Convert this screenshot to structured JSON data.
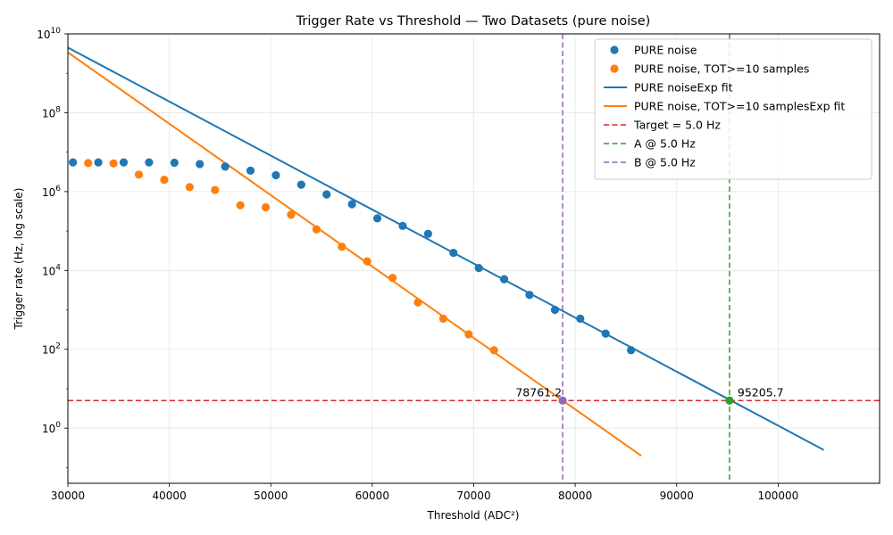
{
  "chart_data": {
    "type": "scatter",
    "title": "Trigger Rate vs Threshold — Two Datasets (pure noise)",
    "xlabel": "Threshold (ADC²)",
    "ylabel": "Trigger rate (Hz, log scale)",
    "xlim": [
      30000,
      110000
    ],
    "ylim": [
      0.04,
      10000000000
    ],
    "yscale": "log",
    "grid": true,
    "legend_position": "top-right",
    "x_ticks": [
      30000,
      40000,
      50000,
      60000,
      70000,
      80000,
      90000,
      100000
    ],
    "x_tick_labels": [
      "30000",
      "40000",
      "50000",
      "60000",
      "70000",
      "80000",
      "90000",
      "100000"
    ],
    "y_ticks": [
      {
        "value": 1,
        "base": "10",
        "exp": "0"
      },
      {
        "value": 100,
        "base": "10",
        "exp": "2"
      },
      {
        "value": 10000,
        "base": "10",
        "exp": "4"
      },
      {
        "value": 1000000,
        "base": "10",
        "exp": "6"
      },
      {
        "value": 100000000,
        "base": "10",
        "exp": "8"
      },
      {
        "value": 10000000000,
        "base": "10",
        "exp": "10"
      }
    ],
    "series": [
      {
        "name": "PURE noise",
        "kind": "scatter",
        "color": "#1f77b4",
        "x": [
          30500,
          33000,
          35500,
          38000,
          40500,
          43000,
          45500,
          48000,
          50500,
          53000,
          55500,
          58000,
          60500,
          63000,
          65500,
          68000,
          70500,
          73000,
          75500,
          78000,
          80500,
          83000,
          85500
        ],
        "y": [
          5500000,
          5500000,
          5500000,
          5500000,
          5400000,
          5000000,
          4300000,
          3400000,
          2600000,
          1500000,
          850000,
          480000,
          210000,
          135000,
          85000,
          28000,
          11500,
          6000,
          2400,
          1000,
          600,
          250,
          95
        ]
      },
      {
        "name": "PURE noise, TOT>=10 samples",
        "kind": "scatter",
        "color": "#ff7f0e",
        "x": [
          32000,
          34500,
          37000,
          39500,
          42000,
          44500,
          47000,
          49500,
          52000,
          54500,
          57000,
          59500,
          62000,
          64500,
          67000,
          69500,
          72000
        ],
        "y": [
          5300000,
          5200000,
          2700000,
          2000000,
          1300000,
          1100000,
          450000,
          400000,
          260000,
          110000,
          40000,
          17000,
          6500,
          1550,
          600,
          240,
          95
        ]
      },
      {
        "name": "PURE noiseExp fit",
        "kind": "line",
        "color": "#1f77b4",
        "x": [
          30000,
          104500
        ],
        "y": [
          4500000000,
          0.28
        ]
      },
      {
        "name": "PURE noise, TOT>=10 samplesExp fit",
        "kind": "line",
        "color": "#ff7f0e",
        "x": [
          30000,
          86500
        ],
        "y": [
          3400000000,
          0.2
        ]
      }
    ],
    "reference_lines": [
      {
        "name": "Target = 5.0 Hz",
        "orientation": "horizontal",
        "value": 5.0,
        "color": "#d62728"
      },
      {
        "name": "A @ 5.0 Hz",
        "orientation": "vertical",
        "value": 95205.7,
        "color": "#2ca02c"
      },
      {
        "name": "B @ 5.0 Hz",
        "orientation": "vertical",
        "value": 78761.2,
        "color": "#9467bd"
      }
    ],
    "annotations": [
      {
        "text": "95205.7",
        "x": 95205.7,
        "y": 5.0,
        "color": "#2ca02c",
        "anchor": "right"
      },
      {
        "text": "78761.2",
        "x": 78761.2,
        "y": 5.0,
        "color": "#9467bd",
        "anchor": "left"
      }
    ]
  }
}
